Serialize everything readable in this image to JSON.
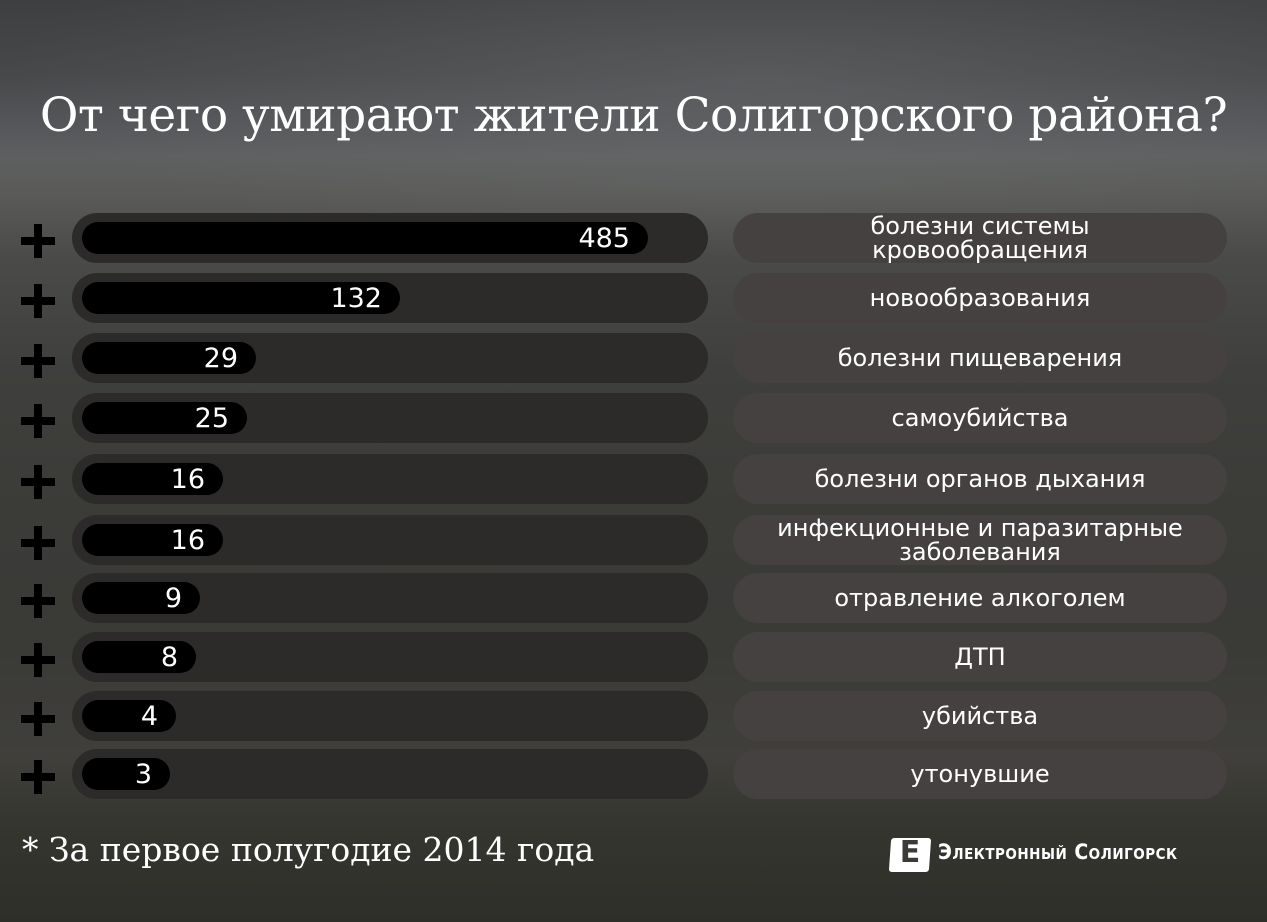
{
  "title": "От чего умирают жители Солигорского района?",
  "footnote": "* За первое полугодие 2014 года",
  "logo": {
    "letter": "Е",
    "text": "Электронный Солигорск"
  },
  "chart_data": {
    "type": "bar",
    "orientation": "horizontal",
    "title": "От чего умирают жители Солигорского района?",
    "categories": [
      "болезни системы кровообращения",
      "новообразования",
      "болезни пищеварения",
      "самоубийства",
      "болезни органов дыхания",
      "инфекционные и паразитарные заболевания",
      "отравление алкоголем",
      "ДТП",
      "убийства",
      "утонувшие"
    ],
    "values": [
      485,
      132,
      29,
      25,
      16,
      16,
      9,
      8,
      4,
      3
    ],
    "value_labels": [
      "485",
      "132",
      "29",
      "25",
      "16",
      "16",
      "9",
      "8",
      "4",
      "3"
    ],
    "colors": {
      "bar": "#000000",
      "track": "#2d2a2a",
      "label_pill": "#454141",
      "text": "#ffffff"
    }
  }
}
